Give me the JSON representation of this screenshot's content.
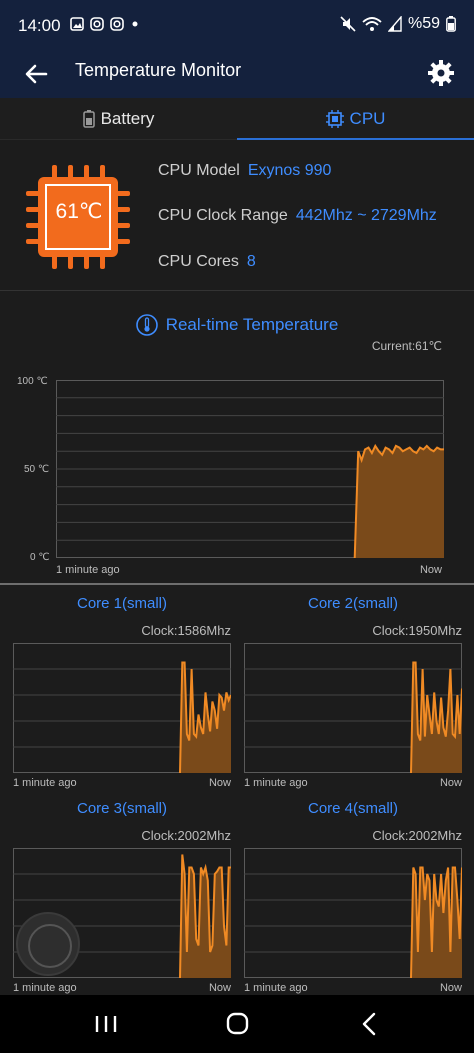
{
  "status_bar": {
    "time": "14:00",
    "battery": "%59"
  },
  "app_bar": {
    "title": "Temperature Monitor"
  },
  "tabs": [
    {
      "label": "Battery",
      "icon": "battery-icon",
      "active": false
    },
    {
      "label": "CPU",
      "icon": "cpu-icon",
      "active": true
    }
  ],
  "cpu": {
    "temperature": "61℃",
    "model_label": "CPU Model",
    "model_value": "Exynos 990",
    "clock_label": "CPU Clock Range",
    "clock_value": "442Mhz ~ 2729Mhz",
    "cores_label": "CPU Cores",
    "cores_value": "8"
  },
  "realtime": {
    "title": "Real-time Temperature",
    "current": "Current:61℃",
    "y_ticks": [
      "100 ℃",
      "50 ℃",
      "0 ℃"
    ],
    "x_start": "1 minute ago",
    "x_end": "Now"
  },
  "cores": [
    {
      "title": "Core 1(small)",
      "clock": "Clock:1586Mhz",
      "x_start": "1 minute ago",
      "x_end": "Now"
    },
    {
      "title": "Core 2(small)",
      "clock": "Clock:1950Mhz",
      "x_start": "1 minute ago",
      "x_end": "Now"
    },
    {
      "title": "Core 3(small)",
      "clock": "Clock:2002Mhz",
      "x_start": "1 minute ago",
      "x_end": "Now"
    },
    {
      "title": "Core 4(small)",
      "clock": "Clock:2002Mhz",
      "x_start": "1 minute ago",
      "x_end": "Now"
    }
  ],
  "colors": {
    "accent": "#3f8dff",
    "chart_fill": "#7a4a1a",
    "chart_line": "#f08a24",
    "chip": "#f26b1d"
  },
  "chart_data": [
    {
      "type": "area",
      "title": "Real-time Temperature",
      "ylim": [
        0,
        100
      ],
      "y": [
        0,
        0,
        0,
        0,
        0,
        0,
        0,
        0,
        0,
        0,
        0,
        0,
        0,
        0,
        0,
        0,
        0,
        0,
        0,
        0,
        0,
        0,
        0,
        0,
        0,
        0,
        0,
        0,
        0,
        0,
        0,
        0,
        0,
        0,
        0,
        0,
        0,
        0,
        0,
        0,
        0,
        0,
        0,
        0,
        0,
        0,
        0,
        0,
        0,
        0,
        0,
        0,
        0,
        0,
        0,
        0,
        0,
        0,
        0,
        0,
        0,
        0,
        0,
        0,
        0,
        0,
        0,
        0,
        0,
        0,
        0,
        0,
        0,
        0,
        0,
        0,
        0,
        0,
        0,
        0,
        0,
        0,
        0,
        0,
        0,
        0,
        0,
        0,
        60,
        55,
        61,
        62,
        59,
        63,
        60,
        58,
        62,
        61,
        59,
        63,
        62,
        60,
        61,
        62,
        60,
        59,
        62,
        61,
        63,
        61,
        60,
        62,
        61,
        61
      ]
    },
    {
      "type": "area",
      "title": "Core 1(small)",
      "ylim": [
        0,
        100
      ],
      "y": [
        0,
        0,
        0,
        0,
        0,
        0,
        0,
        0,
        0,
        0,
        0,
        0,
        0,
        0,
        0,
        0,
        0,
        0,
        0,
        0,
        0,
        0,
        0,
        0,
        0,
        0,
        0,
        0,
        0,
        0,
        0,
        0,
        0,
        0,
        0,
        0,
        0,
        0,
        0,
        0,
        0,
        0,
        0,
        0,
        0,
        0,
        0,
        0,
        0,
        0,
        0,
        0,
        0,
        0,
        0,
        0,
        0,
        0,
        0,
        0,
        0,
        0,
        0,
        0,
        0,
        0,
        0,
        0,
        0,
        0,
        0,
        0,
        0,
        85,
        85,
        30,
        25,
        80,
        30,
        28,
        45,
        35,
        30,
        62,
        45,
        32,
        55,
        48,
        34,
        60,
        58,
        48,
        62,
        56,
        60
      ]
    },
    {
      "type": "area",
      "title": "Core 2(small)",
      "ylim": [
        0,
        100
      ],
      "y": [
        0,
        0,
        0,
        0,
        0,
        0,
        0,
        0,
        0,
        0,
        0,
        0,
        0,
        0,
        0,
        0,
        0,
        0,
        0,
        0,
        0,
        0,
        0,
        0,
        0,
        0,
        0,
        0,
        0,
        0,
        0,
        0,
        0,
        0,
        0,
        0,
        0,
        0,
        0,
        0,
        0,
        0,
        0,
        0,
        0,
        0,
        0,
        0,
        0,
        0,
        0,
        0,
        0,
        0,
        0,
        0,
        0,
        0,
        0,
        0,
        0,
        0,
        0,
        0,
        0,
        0,
        0,
        0,
        0,
        0,
        0,
        0,
        0,
        85,
        85,
        30,
        25,
        80,
        28,
        60,
        45,
        30,
        62,
        40,
        30,
        58,
        35,
        28,
        48,
        80,
        30,
        28,
        60,
        30,
        65
      ]
    },
    {
      "type": "area",
      "title": "Core 3(small)",
      "ylim": [
        0,
        100
      ],
      "y": [
        0,
        0,
        0,
        0,
        0,
        0,
        0,
        0,
        0,
        0,
        0,
        0,
        0,
        0,
        0,
        0,
        0,
        0,
        0,
        0,
        0,
        0,
        0,
        0,
        0,
        0,
        0,
        0,
        0,
        0,
        0,
        0,
        0,
        0,
        0,
        0,
        0,
        0,
        0,
        0,
        0,
        0,
        0,
        0,
        0,
        0,
        0,
        0,
        0,
        0,
        0,
        0,
        0,
        0,
        0,
        0,
        0,
        0,
        0,
        0,
        0,
        0,
        0,
        0,
        0,
        0,
        0,
        0,
        0,
        0,
        0,
        0,
        0,
        95,
        80,
        20,
        85,
        85,
        80,
        30,
        25,
        85,
        80,
        85,
        75,
        20,
        25,
        80,
        82,
        85,
        85,
        40,
        25,
        85,
        85
      ]
    },
    {
      "type": "area",
      "title": "Core 4(small)",
      "ylim": [
        0,
        100
      ],
      "y": [
        0,
        0,
        0,
        0,
        0,
        0,
        0,
        0,
        0,
        0,
        0,
        0,
        0,
        0,
        0,
        0,
        0,
        0,
        0,
        0,
        0,
        0,
        0,
        0,
        0,
        0,
        0,
        0,
        0,
        0,
        0,
        0,
        0,
        0,
        0,
        0,
        0,
        0,
        0,
        0,
        0,
        0,
        0,
        0,
        0,
        0,
        0,
        0,
        0,
        0,
        0,
        0,
        0,
        0,
        0,
        0,
        0,
        0,
        0,
        0,
        0,
        0,
        0,
        0,
        0,
        0,
        0,
        0,
        0,
        0,
        0,
        0,
        0,
        85,
        80,
        20,
        85,
        85,
        60,
        80,
        75,
        20,
        80,
        60,
        55,
        80,
        50,
        75,
        85,
        20,
        85,
        85,
        60,
        30,
        85
      ]
    }
  ]
}
